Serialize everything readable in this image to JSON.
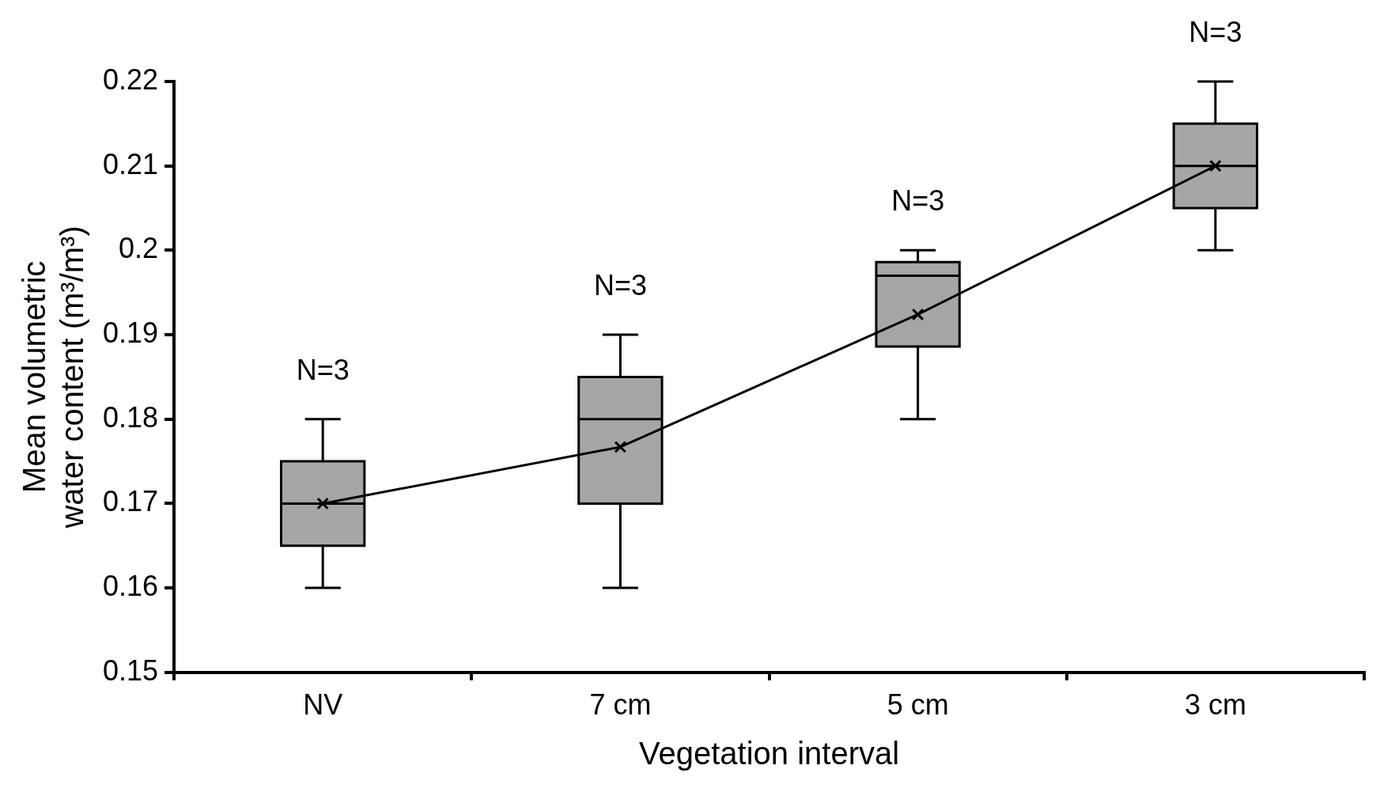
{
  "chart_data": {
    "type": "box",
    "xlabel": "Vegetation interval",
    "ylabel": "Mean volumetric water content (m³/m³)",
    "categories": [
      "NV",
      "7 cm",
      "5 cm",
      "3 cm"
    ],
    "boxes": [
      {
        "low": 0.16,
        "q1": 0.165,
        "median": 0.17,
        "q3": 0.175,
        "high": 0.18
      },
      {
        "low": 0.16,
        "q1": 0.17,
        "median": 0.18,
        "q3": 0.185,
        "high": 0.19
      },
      {
        "low": 0.18,
        "q1": 0.1886,
        "median": 0.197,
        "q3": 0.1986,
        "high": 0.2
      },
      {
        "low": 0.2,
        "q1": 0.205,
        "median": 0.21,
        "q3": 0.215,
        "high": 0.22
      }
    ],
    "color": "#a6a6a6",
    "series": [
      {
        "type": "line",
        "color": "#000000",
        "marker": "cross",
        "values": [
          0.17,
          0.1767,
          0.1924,
          0.21
        ]
      }
    ],
    "ylim": [
      0.15,
      0.22
    ],
    "yticks": [
      0.15,
      0.16,
      0.17,
      0.18,
      0.19,
      {
        "value": 0.2,
        "label": "0.2"
      },
      0.21,
      0.22
    ],
    "grid": false,
    "legend": false,
    "annotations": [
      "N=3",
      "N=3",
      "N=3",
      "N=3"
    ]
  }
}
